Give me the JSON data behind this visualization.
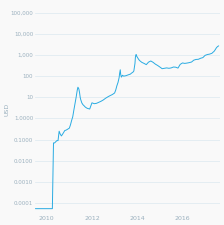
{
  "title": "",
  "ylabel": "USD",
  "background_color": "#f9f9f9",
  "line_color": "#29abe2",
  "grid_color": "#dce8f0",
  "label_color": "#9ab0be",
  "yticks": [
    0.0001,
    0.001,
    0.01,
    0.1,
    1.0,
    10,
    100,
    1000,
    10000,
    100000
  ],
  "ytick_labels": [
    "0.0001",
    "0.0010",
    "0.0100",
    "0.1000",
    "1.0000",
    "10",
    "100",
    "1,000",
    "10,000",
    "100,000"
  ],
  "xlim_start": 2009.5,
  "xlim_end": 2017.65,
  "ylim_log_min": -4.5,
  "ylim_log_max": 5.4,
  "xticks": [
    2010,
    2012,
    2014,
    2016
  ],
  "xtick_labels": [
    "2010",
    "2012",
    "2014",
    "2016"
  ],
  "dates": [
    2009.5,
    2009.6,
    2009.7,
    2009.8,
    2009.9,
    2010.0,
    2010.1,
    2010.2,
    2010.25,
    2010.3,
    2010.35,
    2010.4,
    2010.45,
    2010.5,
    2010.55,
    2010.6,
    2010.65,
    2010.7,
    2010.75,
    2010.8,
    2010.85,
    2010.9,
    2011.0,
    2011.05,
    2011.1,
    2011.15,
    2011.2,
    2011.25,
    2011.3,
    2011.35,
    2011.38,
    2011.42,
    2011.45,
    2011.48,
    2011.5,
    2011.55,
    2011.6,
    2011.65,
    2011.7,
    2011.75,
    2011.8,
    2011.9,
    2012.0,
    2012.1,
    2012.2,
    2012.3,
    2012.4,
    2012.5,
    2012.6,
    2012.7,
    2012.8,
    2012.9,
    2013.0,
    2013.05,
    2013.1,
    2013.15,
    2013.2,
    2013.22,
    2013.25,
    2013.27,
    2013.3,
    2013.35,
    2013.4,
    2013.5,
    2013.6,
    2013.7,
    2013.75,
    2013.8,
    2013.85,
    2013.9,
    2013.92,
    2013.95,
    2013.97,
    2014.0,
    2014.05,
    2014.1,
    2014.2,
    2014.3,
    2014.4,
    2014.5,
    2014.6,
    2014.7,
    2014.8,
    2014.9,
    2015.0,
    2015.1,
    2015.2,
    2015.3,
    2015.4,
    2015.5,
    2015.6,
    2015.7,
    2015.8,
    2015.9,
    2016.0,
    2016.1,
    2016.2,
    2016.3,
    2016.4,
    2016.5,
    2016.6,
    2016.7,
    2016.8,
    2016.9,
    2017.0,
    2017.1,
    2017.2,
    2017.3,
    2017.35,
    2017.4,
    2017.45,
    2017.5,
    2017.55,
    2017.6
  ],
  "prices": [
    5.5e-05,
    5.5e-05,
    5.5e-05,
    5.5e-05,
    5.5e-05,
    5.5e-05,
    5.5e-05,
    5.5e-05,
    5.5e-05,
    0.07,
    0.07,
    0.08,
    0.09,
    0.09,
    0.25,
    0.18,
    0.15,
    0.18,
    0.22,
    0.27,
    0.28,
    0.3,
    0.35,
    0.5,
    0.8,
    1.2,
    2.5,
    5.0,
    10.0,
    22.0,
    30.0,
    25.0,
    17.0,
    10.0,
    8.0,
    5.5,
    4.5,
    4.0,
    3.5,
    3.2,
    3.0,
    2.8,
    5.5,
    5.0,
    5.2,
    5.8,
    6.5,
    7.5,
    9.0,
    10.5,
    12.0,
    13.5,
    16.0,
    22.0,
    35.0,
    50.0,
    85.0,
    130.0,
    200.0,
    120.0,
    90.0,
    110.0,
    100.0,
    105.0,
    115.0,
    125.0,
    140.0,
    150.0,
    175.0,
    400.0,
    800.0,
    1050.0,
    900.0,
    800.0,
    650.0,
    550.0,
    450.0,
    400.0,
    350.0,
    460.0,
    520.0,
    450.0,
    370.0,
    320.0,
    270.0,
    225.0,
    235.0,
    245.0,
    235.0,
    245.0,
    270.0,
    265.0,
    240.0,
    360.0,
    420.0,
    400.0,
    415.0,
    435.0,
    465.0,
    570.0,
    615.0,
    625.0,
    700.0,
    750.0,
    960.0,
    1050.0,
    1100.0,
    1200.0,
    1350.0,
    1500.0,
    1800.0,
    2200.0,
    2500.0,
    2700.0
  ]
}
